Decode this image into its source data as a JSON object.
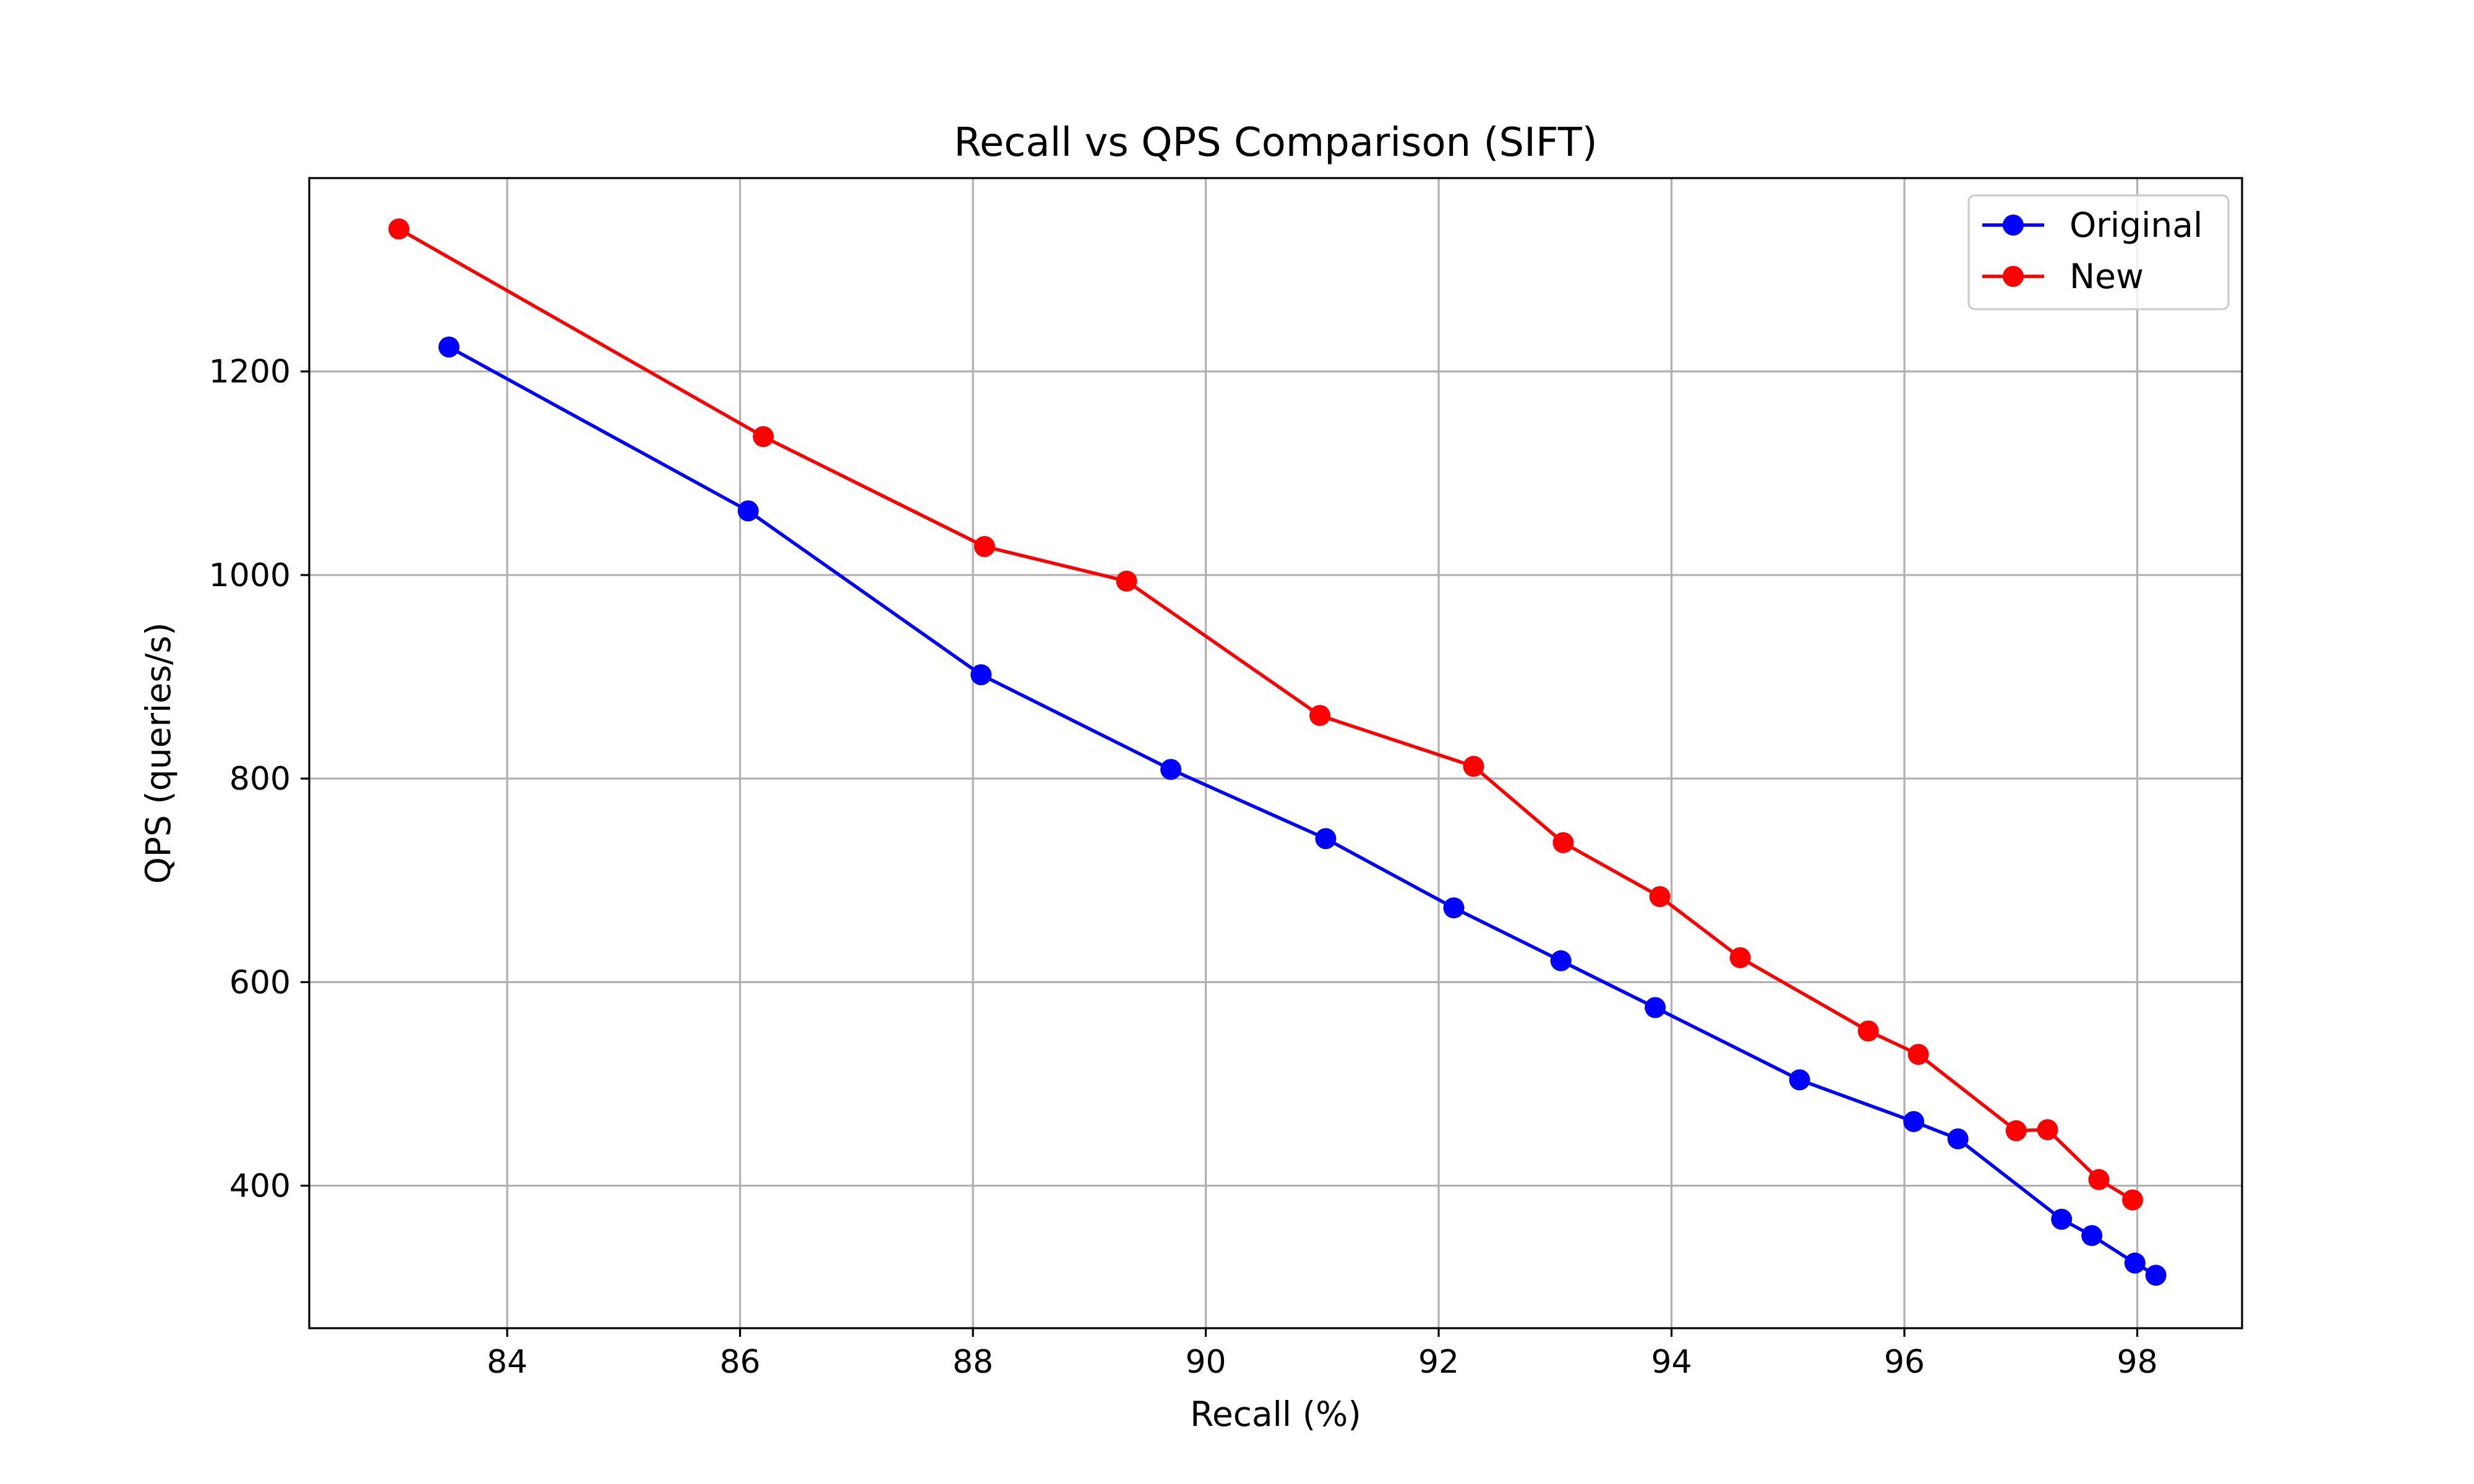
{
  "chart_data": {
    "type": "line",
    "title": "Recall vs QPS Comparison (SIFT)",
    "xlabel": "Recall (%)",
    "ylabel": "QPS (queries/s)",
    "xlim": [
      82.3,
      98.9
    ],
    "ylim": [
      260,
      1390
    ],
    "xticks": [
      84,
      86,
      88,
      90,
      92,
      94,
      96,
      98
    ],
    "yticks": [
      400,
      600,
      800,
      1000,
      1200
    ],
    "grid": true,
    "legend_position": "top-right",
    "series": [
      {
        "name": "Original",
        "color": "#0000ff",
        "marker": "circle",
        "points": [
          {
            "x": 83.5,
            "y": 1224
          },
          {
            "x": 86.07,
            "y": 1063
          },
          {
            "x": 88.07,
            "y": 902
          },
          {
            "x": 89.7,
            "y": 809
          },
          {
            "x": 91.03,
            "y": 741
          },
          {
            "x": 92.13,
            "y": 673
          },
          {
            "x": 93.05,
            "y": 621
          },
          {
            "x": 93.86,
            "y": 575
          },
          {
            "x": 95.1,
            "y": 504
          },
          {
            "x": 96.08,
            "y": 463
          },
          {
            "x": 96.46,
            "y": 446
          },
          {
            "x": 97.35,
            "y": 367
          },
          {
            "x": 97.61,
            "y": 351
          },
          {
            "x": 97.98,
            "y": 324
          },
          {
            "x": 98.16,
            "y": 312
          }
        ]
      },
      {
        "name": "New",
        "color": "#ff0000",
        "marker": "circle",
        "points": [
          {
            "x": 83.07,
            "y": 1340
          },
          {
            "x": 86.2,
            "y": 1136
          },
          {
            "x": 88.1,
            "y": 1028
          },
          {
            "x": 89.32,
            "y": 994
          },
          {
            "x": 90.98,
            "y": 862
          },
          {
            "x": 92.3,
            "y": 812
          },
          {
            "x": 93.07,
            "y": 737
          },
          {
            "x": 93.9,
            "y": 684
          },
          {
            "x": 94.59,
            "y": 624
          },
          {
            "x": 95.69,
            "y": 552
          },
          {
            "x": 96.12,
            "y": 529
          },
          {
            "x": 96.96,
            "y": 454
          },
          {
            "x": 97.23,
            "y": 455
          },
          {
            "x": 97.67,
            "y": 406
          },
          {
            "x": 97.96,
            "y": 386
          }
        ]
      }
    ]
  }
}
